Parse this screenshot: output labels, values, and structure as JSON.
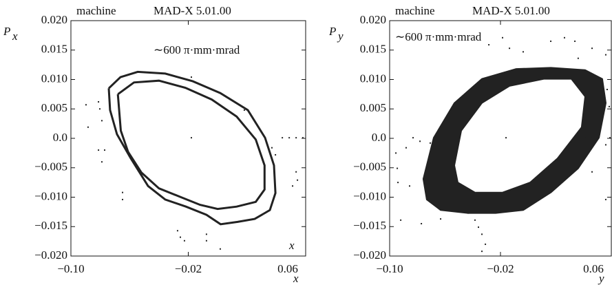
{
  "chart_data": [
    {
      "type": "scatter",
      "color": "#222222",
      "header": [
        "machine",
        "MAD-X 5.01.00"
      ],
      "annotation": "∼600 π·mm·mrad",
      "corner_mark": "x",
      "xlabel": "x",
      "ylabel": {
        "main": "P",
        "sub": "x"
      },
      "xlim": [
        -0.1,
        0.06
      ],
      "ylim": [
        -0.02,
        0.02
      ],
      "xticks": [
        {
          "value": -0.1,
          "label": "−0.10"
        },
        {
          "value": -0.02,
          "label": "−0.02"
        },
        0.06
      ],
      "yticks": [
        {
          "value": 0.02,
          "label": "0.020"
        },
        0.015,
        {
          "value": 0.01,
          "label": "0.010"
        },
        0.005,
        {
          "value": 0,
          "label": "0.0"
        },
        {
          "value": -0.005,
          "label": "−0.005"
        },
        {
          "value": -0.01,
          "label": "−0.010"
        },
        {
          "value": -0.015,
          "label": "−0.015"
        },
        {
          "value": -0.02,
          "label": "−0.020"
        }
      ],
      "contours": [
        {
          "x": [
            -0.0742,
            -0.0662,
            -0.0545,
            -0.0357,
            -0.0169,
            0.0018,
            0.0206,
            0.0323,
            0.0384,
            0.0394,
            0.0356,
            0.0253,
            0.0136,
            0.002,
            -0.0076,
            -0.0216,
            -0.0357,
            -0.0474,
            -0.0592,
            -0.0686,
            -0.0733,
            -0.0742
          ],
          "y": [
            0.0085,
            0.0104,
            0.0113,
            0.011,
            0.0097,
            0.0077,
            0.0048,
            0.0001,
            -0.0046,
            -0.0093,
            -0.0122,
            -0.0137,
            -0.0142,
            -0.0146,
            -0.013,
            -0.0116,
            -0.0104,
            -0.0081,
            -0.0034,
            0.0007,
            0.0048,
            0.0085
          ]
        },
        {
          "x": [
            -0.068,
            -0.057,
            -0.04,
            -0.022,
            -0.004,
            0.013,
            0.026,
            0.032,
            0.032,
            0.026,
            0.013,
            0.0,
            -0.012,
            -0.026,
            -0.04,
            -0.052,
            -0.061,
            -0.066,
            -0.068
          ],
          "y": [
            0.0075,
            0.0095,
            0.0098,
            0.0086,
            0.0066,
            0.0037,
            -0.0002,
            -0.0046,
            -0.0087,
            -0.0108,
            -0.0116,
            -0.012,
            -0.0113,
            -0.0099,
            -0.0085,
            -0.0058,
            -0.0023,
            0.0013,
            0.0075
          ]
        }
      ],
      "points": {
        "x": [
          -0.0897,
          -0.0883,
          -0.0812,
          -0.0803,
          -0.0789,
          -0.0812,
          -0.077,
          -0.0789,
          -0.0648,
          -0.0648,
          -0.0179,
          -0.0179,
          0.0182,
          -0.0273,
          -0.0254,
          -0.0226,
          -0.0076,
          -0.0076,
          0.0018,
          0.037,
          0.0394,
          0.0441,
          0.0488,
          0.0535,
          0.0581,
          0.0535,
          0.0511,
          0.0544
        ],
        "y": [
          0.0057,
          0.0019,
          0.0062,
          0.005,
          0.003,
          -0.002,
          -0.002,
          -0.004,
          -0.0092,
          -0.0104,
          0.0001,
          0.0104,
          0.0048,
          -0.0157,
          -0.0168,
          -0.0174,
          -0.0163,
          -0.0174,
          -0.0188,
          -0.0016,
          -0.0028,
          0.0001,
          0.0001,
          0.0001,
          0.0001,
          -0.0057,
          -0.0081,
          -0.0071
        ]
      }
    },
    {
      "type": "scatter",
      "color": "#222222",
      "header": [
        "machine",
        "MAD-X 5.01.00"
      ],
      "annotation": "∼600 π·mm·mrad",
      "xlabel": "y",
      "ylabel": {
        "main": "P",
        "sub": "y"
      },
      "xlim": [
        -0.1,
        0.06
      ],
      "ylim": [
        -0.02,
        0.02
      ],
      "xticks": [
        {
          "value": -0.1,
          "label": "−0.10"
        },
        {
          "value": -0.02,
          "label": "−0.02"
        },
        0.06
      ],
      "yticks": [
        {
          "value": 0.02,
          "label": "0.020"
        },
        0.015,
        {
          "value": 0.01,
          "label": "0.010"
        },
        0.005,
        {
          "value": 0,
          "label": "0.0"
        },
        {
          "value": -0.005,
          "label": "−0.005"
        },
        {
          "value": -0.01,
          "label": "−0.010"
        },
        {
          "value": -0.015,
          "label": "−0.015"
        },
        {
          "value": -0.02,
          "label": "−0.020"
        }
      ],
      "band": {
        "outer": {
          "x": [
            -0.0757,
            -0.0682,
            -0.0533,
            -0.0334,
            -0.0086,
            0.0163,
            0.0411,
            0.0535,
            0.056,
            0.0511,
            0.0361,
            0.0163,
            -0.0036,
            -0.0235,
            -0.0434,
            -0.0632,
            -0.0732
          ],
          "y": [
            -0.0069,
            0.0001,
            0.006,
            0.0101,
            0.0118,
            0.012,
            0.0116,
            0.0101,
            0.006,
            0.0001,
            -0.0051,
            -0.0092,
            -0.0122,
            -0.0127,
            -0.0127,
            -0.0122,
            -0.0104
          ]
        },
        "inner": {
          "x": [
            -0.0533,
            -0.0483,
            -0.0334,
            -0.0135,
            0.0113,
            0.0312,
            0.0411,
            0.0386,
            0.0212,
            0.0014,
            -0.0185,
            -0.0384,
            -0.0508
          ],
          "y": [
            -0.0046,
            0.0013,
            0.006,
            0.0089,
            0.0101,
            0.0101,
            0.0071,
            0.0019,
            -0.0034,
            -0.0075,
            -0.0092,
            -0.0092,
            -0.0075
          ]
        }
      },
      "points": {
        "x": [
          -0.0955,
          -0.0945,
          -0.094,
          -0.0881,
          -0.0856,
          -0.0831,
          -0.0781,
          -0.0707,
          -0.092,
          -0.0771,
          -0.0632,
          -0.0533,
          -0.0508,
          -0.0434,
          -0.0384,
          -0.0359,
          -0.0334,
          -0.0309,
          -0.0334,
          -0.0284,
          -0.0135,
          -0.0036,
          0.0163,
          0.0262,
          0.0337,
          0.0361,
          0.0461,
          0.056,
          0.057,
          0.0585,
          0.059,
          0.056,
          0.0461,
          0.0411,
          -0.016,
          0.0461,
          0.056,
          0.0386,
          -0.0185
        ],
        "y": [
          -0.0025,
          -0.0051,
          -0.0075,
          -0.0016,
          -0.0081,
          0.0001,
          -0.0005,
          -0.0008,
          -0.0139,
          -0.0145,
          -0.0137,
          0.0042,
          0.003,
          -0.0127,
          -0.0139,
          -0.0151,
          -0.0163,
          -0.018,
          -0.0192,
          0.0159,
          0.0153,
          0.0147,
          0.0165,
          0.0171,
          0.0165,
          0.0136,
          0.0153,
          0.0142,
          0.0083,
          0.0054,
          0.0001,
          -0.0011,
          0.0001,
          0.0001,
          0.0001,
          -0.0057,
          -0.0104,
          -0.004,
          0.0171
        ]
      }
    }
  ]
}
